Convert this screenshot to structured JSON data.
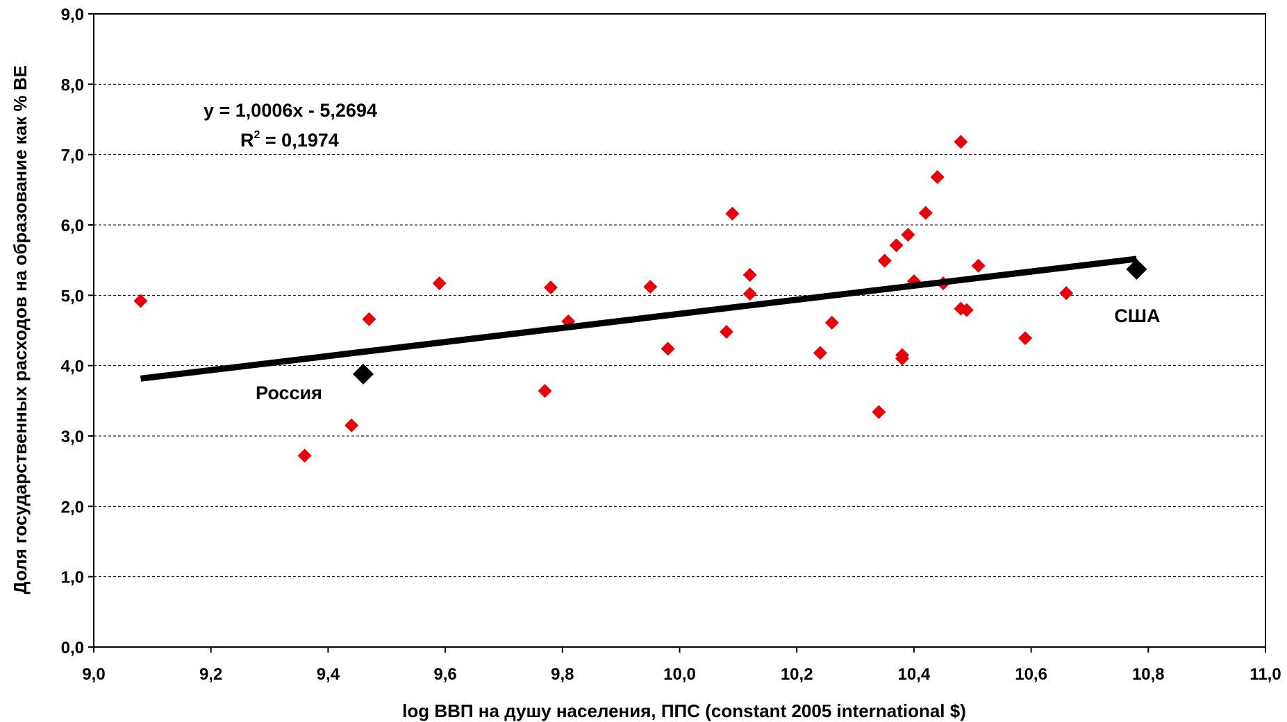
{
  "chart_data": {
    "type": "scatter",
    "xlabel": "log ВВП на душу населения, ППС (constant 2005 international $)",
    "ylabel": "Доля государственных расходов на образование как % ВЕ",
    "xlim": [
      9.0,
      11.0
    ],
    "ylim": [
      0.0,
      9.0
    ],
    "x_ticks": [
      "9,0",
      "9,2",
      "9,4",
      "9,6",
      "9,8",
      "10,0",
      "10,2",
      "10,4",
      "10,6",
      "10,8",
      "11,0"
    ],
    "y_ticks": [
      "0,0",
      "1,0",
      "2,0",
      "3,0",
      "4,0",
      "5,0",
      "6,0",
      "7,0",
      "8,0",
      "9,0"
    ],
    "grid": "horizontal dashed",
    "colors": {
      "points": "#e8000b",
      "highlight": "#000000",
      "trendline": "#000000"
    },
    "series": [
      {
        "points": [
          [
            9.08,
            4.92
          ],
          [
            9.36,
            2.72
          ],
          [
            9.44,
            3.15
          ],
          [
            9.47,
            4.66
          ],
          [
            9.59,
            5.17
          ],
          [
            9.77,
            3.64
          ],
          [
            9.78,
            5.11
          ],
          [
            9.81,
            4.63
          ],
          [
            9.95,
            5.12
          ],
          [
            9.98,
            4.24
          ],
          [
            10.08,
            4.48
          ],
          [
            10.09,
            6.16
          ],
          [
            10.12,
            5.29
          ],
          [
            10.12,
            5.02
          ],
          [
            10.24,
            4.18
          ],
          [
            10.26,
            4.61
          ],
          [
            10.34,
            3.34
          ],
          [
            10.35,
            5.49
          ],
          [
            10.37,
            5.71
          ],
          [
            10.38,
            4.15
          ],
          [
            10.38,
            4.1
          ],
          [
            10.39,
            5.86
          ],
          [
            10.4,
            5.2
          ],
          [
            10.42,
            6.17
          ],
          [
            10.44,
            6.68
          ],
          [
            10.45,
            5.17
          ],
          [
            10.48,
            7.18
          ],
          [
            10.48,
            4.81
          ],
          [
            10.49,
            4.79
          ],
          [
            10.51,
            5.42
          ],
          [
            10.59,
            4.39
          ],
          [
            10.66,
            5.03
          ]
        ]
      }
    ],
    "highlighted": [
      {
        "label": "Россия",
        "x": 9.46,
        "y": 3.88
      },
      {
        "label": "США",
        "x": 10.78,
        "y": 5.37
      }
    ],
    "trendline": {
      "slope": 1.0006,
      "intercept": -5.2694,
      "x_range": [
        9.08,
        10.78
      ],
      "equation": "y = 1,0006x - 5,2694",
      "r2_label": "R",
      "r2_sup": "2",
      "r2_value": " = 0,1974"
    }
  }
}
